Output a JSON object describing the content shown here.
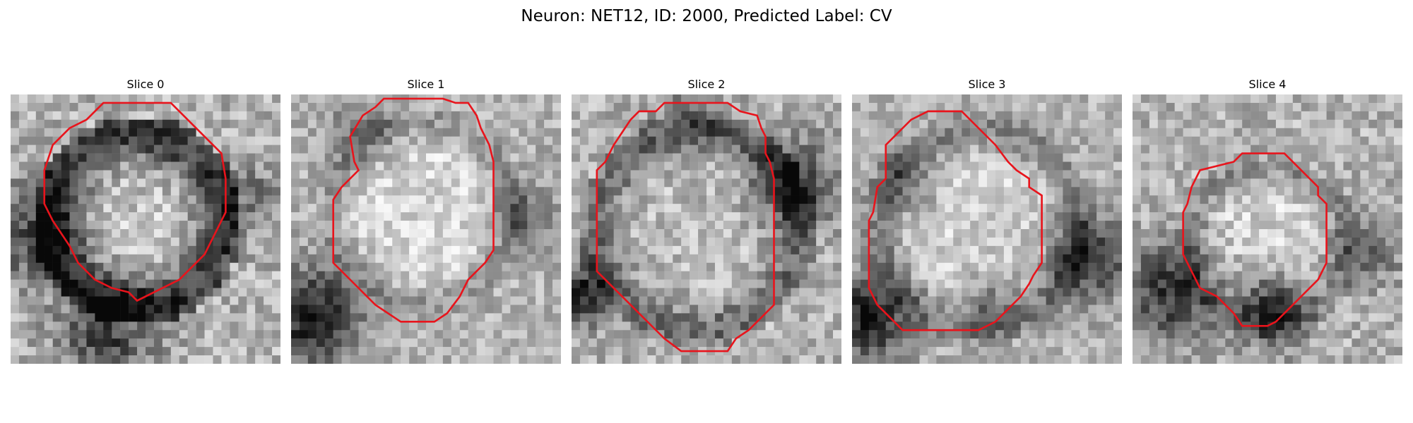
{
  "figure": {
    "title": "Neuron: NET12, ID: 2000, Predicted Label: CV"
  },
  "panels": [
    {
      "title": "Slice 0"
    },
    {
      "title": "Slice 1"
    },
    {
      "title": "Slice 2"
    },
    {
      "title": "Slice 3"
    },
    {
      "title": "Slice 4"
    }
  ],
  "contour_color": "#e8141c"
}
